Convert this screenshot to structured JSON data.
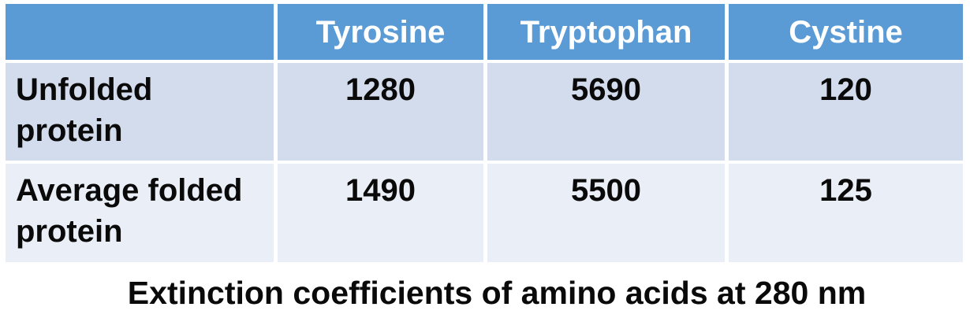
{
  "table": {
    "columns": [
      "",
      "Tyrosine",
      "Tryptophan",
      "Cystine"
    ],
    "rows": [
      {
        "label": "Unfolded protein",
        "values": [
          "1280",
          "5690",
          "120"
        ]
      },
      {
        "label": "Average folded protein",
        "values": [
          "1490",
          "5500",
          "125"
        ]
      }
    ]
  },
  "caption": "Extinction coefficients of amino acids at 280 nm",
  "colors": {
    "header_bg": "#5b9bd5",
    "row_odd_bg": "#d3dcec",
    "row_even_bg": "#eaeef6",
    "header_text": "#ffffff",
    "body_text": "#0a0a0a",
    "gridline": "#ffffff"
  },
  "chart_data": {
    "type": "table",
    "title": "Extinction coefficients of amino acids at 280 nm",
    "columns": [
      "",
      "Tyrosine",
      "Tryptophan",
      "Cystine"
    ],
    "rows": [
      [
        "Unfolded protein",
        1280,
        5690,
        120
      ],
      [
        "Average folded protein",
        1490,
        5500,
        125
      ]
    ]
  }
}
